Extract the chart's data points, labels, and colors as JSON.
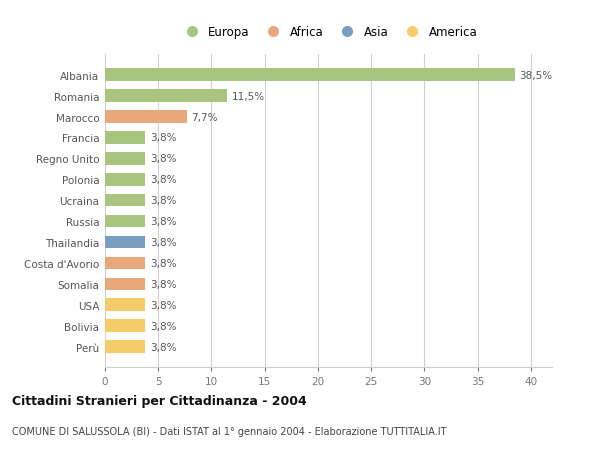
{
  "countries": [
    "Albania",
    "Romania",
    "Marocco",
    "Francia",
    "Regno Unito",
    "Polonia",
    "Ucraina",
    "Russia",
    "Thailandia",
    "Costa d'Avorio",
    "Somalia",
    "USA",
    "Bolivia",
    "Perù"
  ],
  "values": [
    38.5,
    11.5,
    7.7,
    3.8,
    3.8,
    3.8,
    3.8,
    3.8,
    3.8,
    3.8,
    3.8,
    3.8,
    3.8,
    3.8
  ],
  "labels": [
    "38,5%",
    "11,5%",
    "7,7%",
    "3,8%",
    "3,8%",
    "3,8%",
    "3,8%",
    "3,8%",
    "3,8%",
    "3,8%",
    "3,8%",
    "3,8%",
    "3,8%",
    "3,8%"
  ],
  "colors": [
    "#a8c47e",
    "#a8c47e",
    "#e8a87c",
    "#a8c47e",
    "#a8c47e",
    "#a8c47e",
    "#a8c47e",
    "#a8c47e",
    "#7b9dbf",
    "#e8a87c",
    "#e8a87c",
    "#f5cc6a",
    "#f5cc6a",
    "#f5cc6a"
  ],
  "legend_labels": [
    "Europa",
    "Africa",
    "Asia",
    "America"
  ],
  "legend_colors": [
    "#a8c47e",
    "#e8a87c",
    "#7b9dbf",
    "#f5cc6a"
  ],
  "title": "Cittadini Stranieri per Cittadinanza - 2004",
  "subtitle": "COMUNE DI SALUSSOLA (BI) - Dati ISTAT al 1° gennaio 2004 - Elaborazione TUTTITALIA.IT",
  "xlim": [
    0,
    42
  ],
  "xticks": [
    0,
    5,
    10,
    15,
    20,
    25,
    30,
    35,
    40
  ],
  "background_color": "#ffffff",
  "grid_color": "#d0d0d0",
  "bar_height": 0.6
}
